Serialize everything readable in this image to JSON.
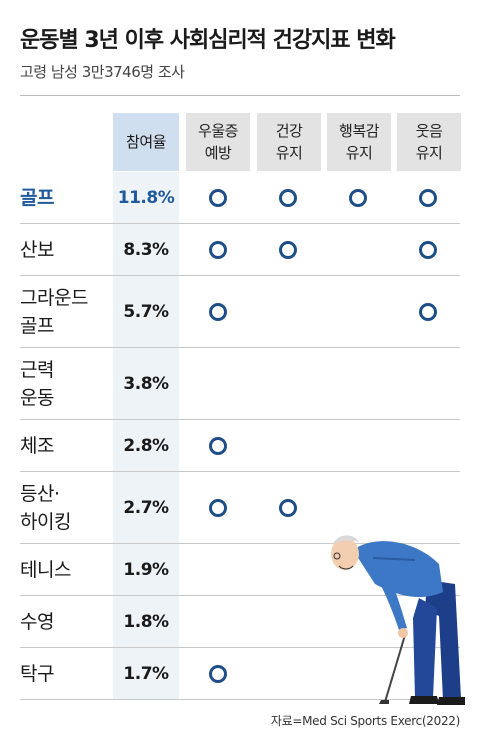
{
  "title": "운동별 3년 이후 사회심리적 건강지표 변화",
  "subtitle": "고령 남성 3만3746명 조사",
  "columns": [
    "참여율",
    "우울증\n예방",
    "건강\n유지",
    "행복감\n유지",
    "웃음\n유지"
  ],
  "rows": [
    {
      "name": "골프",
      "pct": "11.8%",
      "marks": [
        true,
        true,
        true,
        true
      ]
    },
    {
      "name": "산보",
      "pct": "8.3%",
      "marks": [
        true,
        true,
        false,
        true
      ]
    },
    {
      "name": "그라운드\n골프",
      "pct": "5.7%",
      "marks": [
        true,
        false,
        false,
        true
      ]
    },
    {
      "name": "근력\n운동",
      "pct": "3.8%",
      "marks": [
        false,
        false,
        false,
        false
      ]
    },
    {
      "name": "체조",
      "pct": "2.8%",
      "marks": [
        true,
        false,
        false,
        false
      ]
    },
    {
      "name": "등산·\n하이킹",
      "pct": "2.7%",
      "marks": [
        true,
        true,
        false,
        false
      ]
    },
    {
      "name": "테니스",
      "pct": "1.9%",
      "marks": [
        false,
        false,
        false,
        false
      ]
    },
    {
      "name": "수영",
      "pct": "1.8%",
      "marks": [
        false,
        false,
        false,
        false
      ]
    },
    {
      "name": "탁구",
      "pct": "1.7%",
      "marks": [
        true,
        false,
        false,
        false
      ]
    }
  ],
  "source": "자료=Med Sci Sports Exerc(2022)",
  "colors": {
    "accent": "#1f5a9c",
    "mark": "#1e4e86",
    "header_part": "#cfdfef",
    "header": "#e3e3e3"
  }
}
